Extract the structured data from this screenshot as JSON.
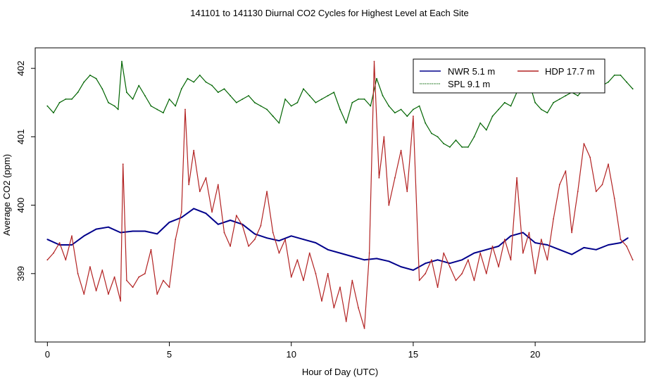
{
  "chart_data": {
    "type": "line",
    "title": "141101  to  141130 Diurnal CO2 Cycles for Highest Level at Each Site",
    "xlabel": "Hour of Day (UTC)",
    "ylabel": "Average CO2 (ppm)",
    "xlim": [
      -0.5,
      24.5
    ],
    "ylim": [
      398.0,
      402.3
    ],
    "x_ticks": [
      0,
      5,
      10,
      15,
      20
    ],
    "x_tick_labels": [
      "0",
      "5",
      "10",
      "15",
      "20"
    ],
    "y_ticks": [
      399,
      400,
      401,
      402
    ],
    "y_tick_labels": [
      "399",
      "400",
      "401",
      "402"
    ],
    "legend_position": "top-right",
    "grid": false,
    "series": [
      {
        "name": "NWR  5.1 m",
        "color": "#00008b",
        "x": [
          0,
          0.5,
          1,
          1.5,
          2,
          2.5,
          3,
          3.5,
          4,
          4.5,
          5,
          5.5,
          6,
          6.5,
          7,
          7.5,
          8,
          8.5,
          9,
          9.5,
          10,
          10.5,
          11,
          11.5,
          12,
          12.5,
          13,
          13.5,
          14,
          14.5,
          15,
          15.5,
          16,
          16.5,
          17,
          17.5,
          18,
          18.5,
          19,
          19.5,
          20,
          20.5,
          21,
          21.5,
          22,
          22.5,
          23,
          23.5,
          23.8
        ],
        "values": [
          399.5,
          399.42,
          399.42,
          399.55,
          399.65,
          399.68,
          399.6,
          399.62,
          399.62,
          399.58,
          399.75,
          399.82,
          399.95,
          399.88,
          399.72,
          399.78,
          399.72,
          399.58,
          399.52,
          399.48,
          399.55,
          399.5,
          399.45,
          399.35,
          399.3,
          399.25,
          399.2,
          399.22,
          399.18,
          399.1,
          399.05,
          399.15,
          399.2,
          399.15,
          399.2,
          399.3,
          399.35,
          399.4,
          399.55,
          399.6,
          399.45,
          399.42,
          399.35,
          399.28,
          399.38,
          399.35,
          399.42,
          399.45,
          399.52
        ]
      },
      {
        "name": "HDP   17.7 m",
        "color": "#b22222",
        "x": [
          0,
          0.25,
          0.5,
          0.75,
          1,
          1.25,
          1.5,
          1.75,
          2,
          2.25,
          2.5,
          2.75,
          3,
          3.1,
          3.25,
          3.5,
          3.75,
          4,
          4.25,
          4.5,
          4.75,
          5,
          5.25,
          5.5,
          5.65,
          5.8,
          6,
          6.25,
          6.5,
          6.75,
          7,
          7.25,
          7.5,
          7.75,
          8,
          8.25,
          8.5,
          8.75,
          9,
          9.25,
          9.5,
          9.75,
          10,
          10.25,
          10.5,
          10.75,
          11,
          11.25,
          11.5,
          11.75,
          12,
          12.25,
          12.5,
          12.75,
          13,
          13.2,
          13.4,
          13.6,
          13.8,
          14,
          14.25,
          14.5,
          14.75,
          15,
          15.25,
          15.5,
          15.75,
          16,
          16.25,
          16.5,
          16.75,
          17,
          17.25,
          17.5,
          17.75,
          18,
          18.25,
          18.5,
          18.75,
          19,
          19.25,
          19.5,
          19.75,
          20,
          20.25,
          20.5,
          20.75,
          21,
          21.25,
          21.5,
          21.75,
          22,
          22.25,
          22.5,
          22.75,
          23,
          23.25,
          23.5,
          23.75,
          24
        ],
        "values": [
          399.2,
          399.3,
          399.45,
          399.2,
          399.55,
          399.0,
          398.7,
          399.1,
          398.75,
          399.05,
          398.7,
          398.95,
          398.6,
          400.6,
          398.9,
          398.8,
          398.95,
          399.0,
          399.35,
          398.7,
          398.9,
          398.8,
          399.5,
          399.9,
          401.4,
          400.3,
          400.8,
          400.2,
          400.4,
          399.9,
          400.3,
          399.6,
          399.4,
          399.85,
          399.7,
          399.4,
          399.5,
          399.7,
          400.2,
          399.6,
          399.3,
          399.5,
          398.95,
          399.2,
          398.9,
          399.3,
          399.0,
          398.6,
          399.0,
          398.5,
          398.8,
          398.3,
          398.9,
          398.5,
          398.2,
          399.3,
          402.1,
          400.4,
          401.0,
          400.0,
          400.4,
          400.8,
          400.2,
          401.3,
          398.9,
          399.0,
          399.2,
          398.8,
          399.3,
          399.1,
          398.9,
          399.0,
          399.2,
          398.9,
          399.3,
          399.0,
          399.4,
          399.1,
          399.5,
          399.2,
          400.4,
          399.3,
          399.6,
          399.0,
          399.5,
          399.2,
          399.8,
          400.3,
          400.5,
          399.6,
          400.2,
          400.9,
          400.7,
          400.2,
          400.3,
          400.6,
          400.1,
          399.5,
          399.4,
          399.2
        ]
      },
      {
        "name": "SPL   9.1 m",
        "color": "#006400",
        "x": [
          0,
          0.25,
          0.5,
          0.75,
          1,
          1.25,
          1.5,
          1.75,
          2,
          2.25,
          2.5,
          2.75,
          2.9,
          3.05,
          3.25,
          3.5,
          3.75,
          4,
          4.25,
          4.5,
          4.75,
          5,
          5.25,
          5.5,
          5.75,
          6,
          6.25,
          6.5,
          6.75,
          7,
          7.25,
          7.5,
          7.75,
          8,
          8.25,
          8.5,
          8.75,
          9,
          9.25,
          9.5,
          9.75,
          10,
          10.25,
          10.5,
          10.75,
          11,
          11.25,
          11.5,
          11.75,
          12,
          12.25,
          12.5,
          12.75,
          13,
          13.25,
          13.5,
          13.75,
          14,
          14.25,
          14.5,
          14.75,
          15,
          15.25,
          15.5,
          15.75,
          16,
          16.25,
          16.5,
          16.75,
          17,
          17.25,
          17.5,
          17.75,
          18,
          18.25,
          18.5,
          18.75,
          19,
          19.25,
          19.5,
          19.75,
          20,
          20.25,
          20.5,
          20.75,
          21,
          21.25,
          21.5,
          21.75,
          22,
          22.25,
          22.5,
          22.75,
          23,
          23.25,
          23.5,
          23.75,
          24
        ],
        "values": [
          401.45,
          401.35,
          401.5,
          401.55,
          401.55,
          401.65,
          401.8,
          401.9,
          401.85,
          401.7,
          401.5,
          401.45,
          401.4,
          402.1,
          401.65,
          401.55,
          401.75,
          401.6,
          401.45,
          401.4,
          401.35,
          401.55,
          401.45,
          401.7,
          401.85,
          401.8,
          401.9,
          401.8,
          401.75,
          401.65,
          401.7,
          401.6,
          401.5,
          401.55,
          401.6,
          401.5,
          401.45,
          401.4,
          401.3,
          401.2,
          401.55,
          401.45,
          401.5,
          401.7,
          401.6,
          401.5,
          401.55,
          401.6,
          401.65,
          401.4,
          401.2,
          401.5,
          401.55,
          401.55,
          401.45,
          401.85,
          401.6,
          401.45,
          401.35,
          401.4,
          401.3,
          401.4,
          401.45,
          401.2,
          401.05,
          401.0,
          400.9,
          400.85,
          400.95,
          400.85,
          400.85,
          401.0,
          401.2,
          401.1,
          401.3,
          401.4,
          401.5,
          401.45,
          401.65,
          401.85,
          401.8,
          401.5,
          401.4,
          401.35,
          401.5,
          401.55,
          401.6,
          401.65,
          401.6,
          401.7,
          401.8,
          401.85,
          401.75,
          401.8,
          401.9,
          401.9,
          401.8,
          401.7
        ]
      }
    ]
  }
}
